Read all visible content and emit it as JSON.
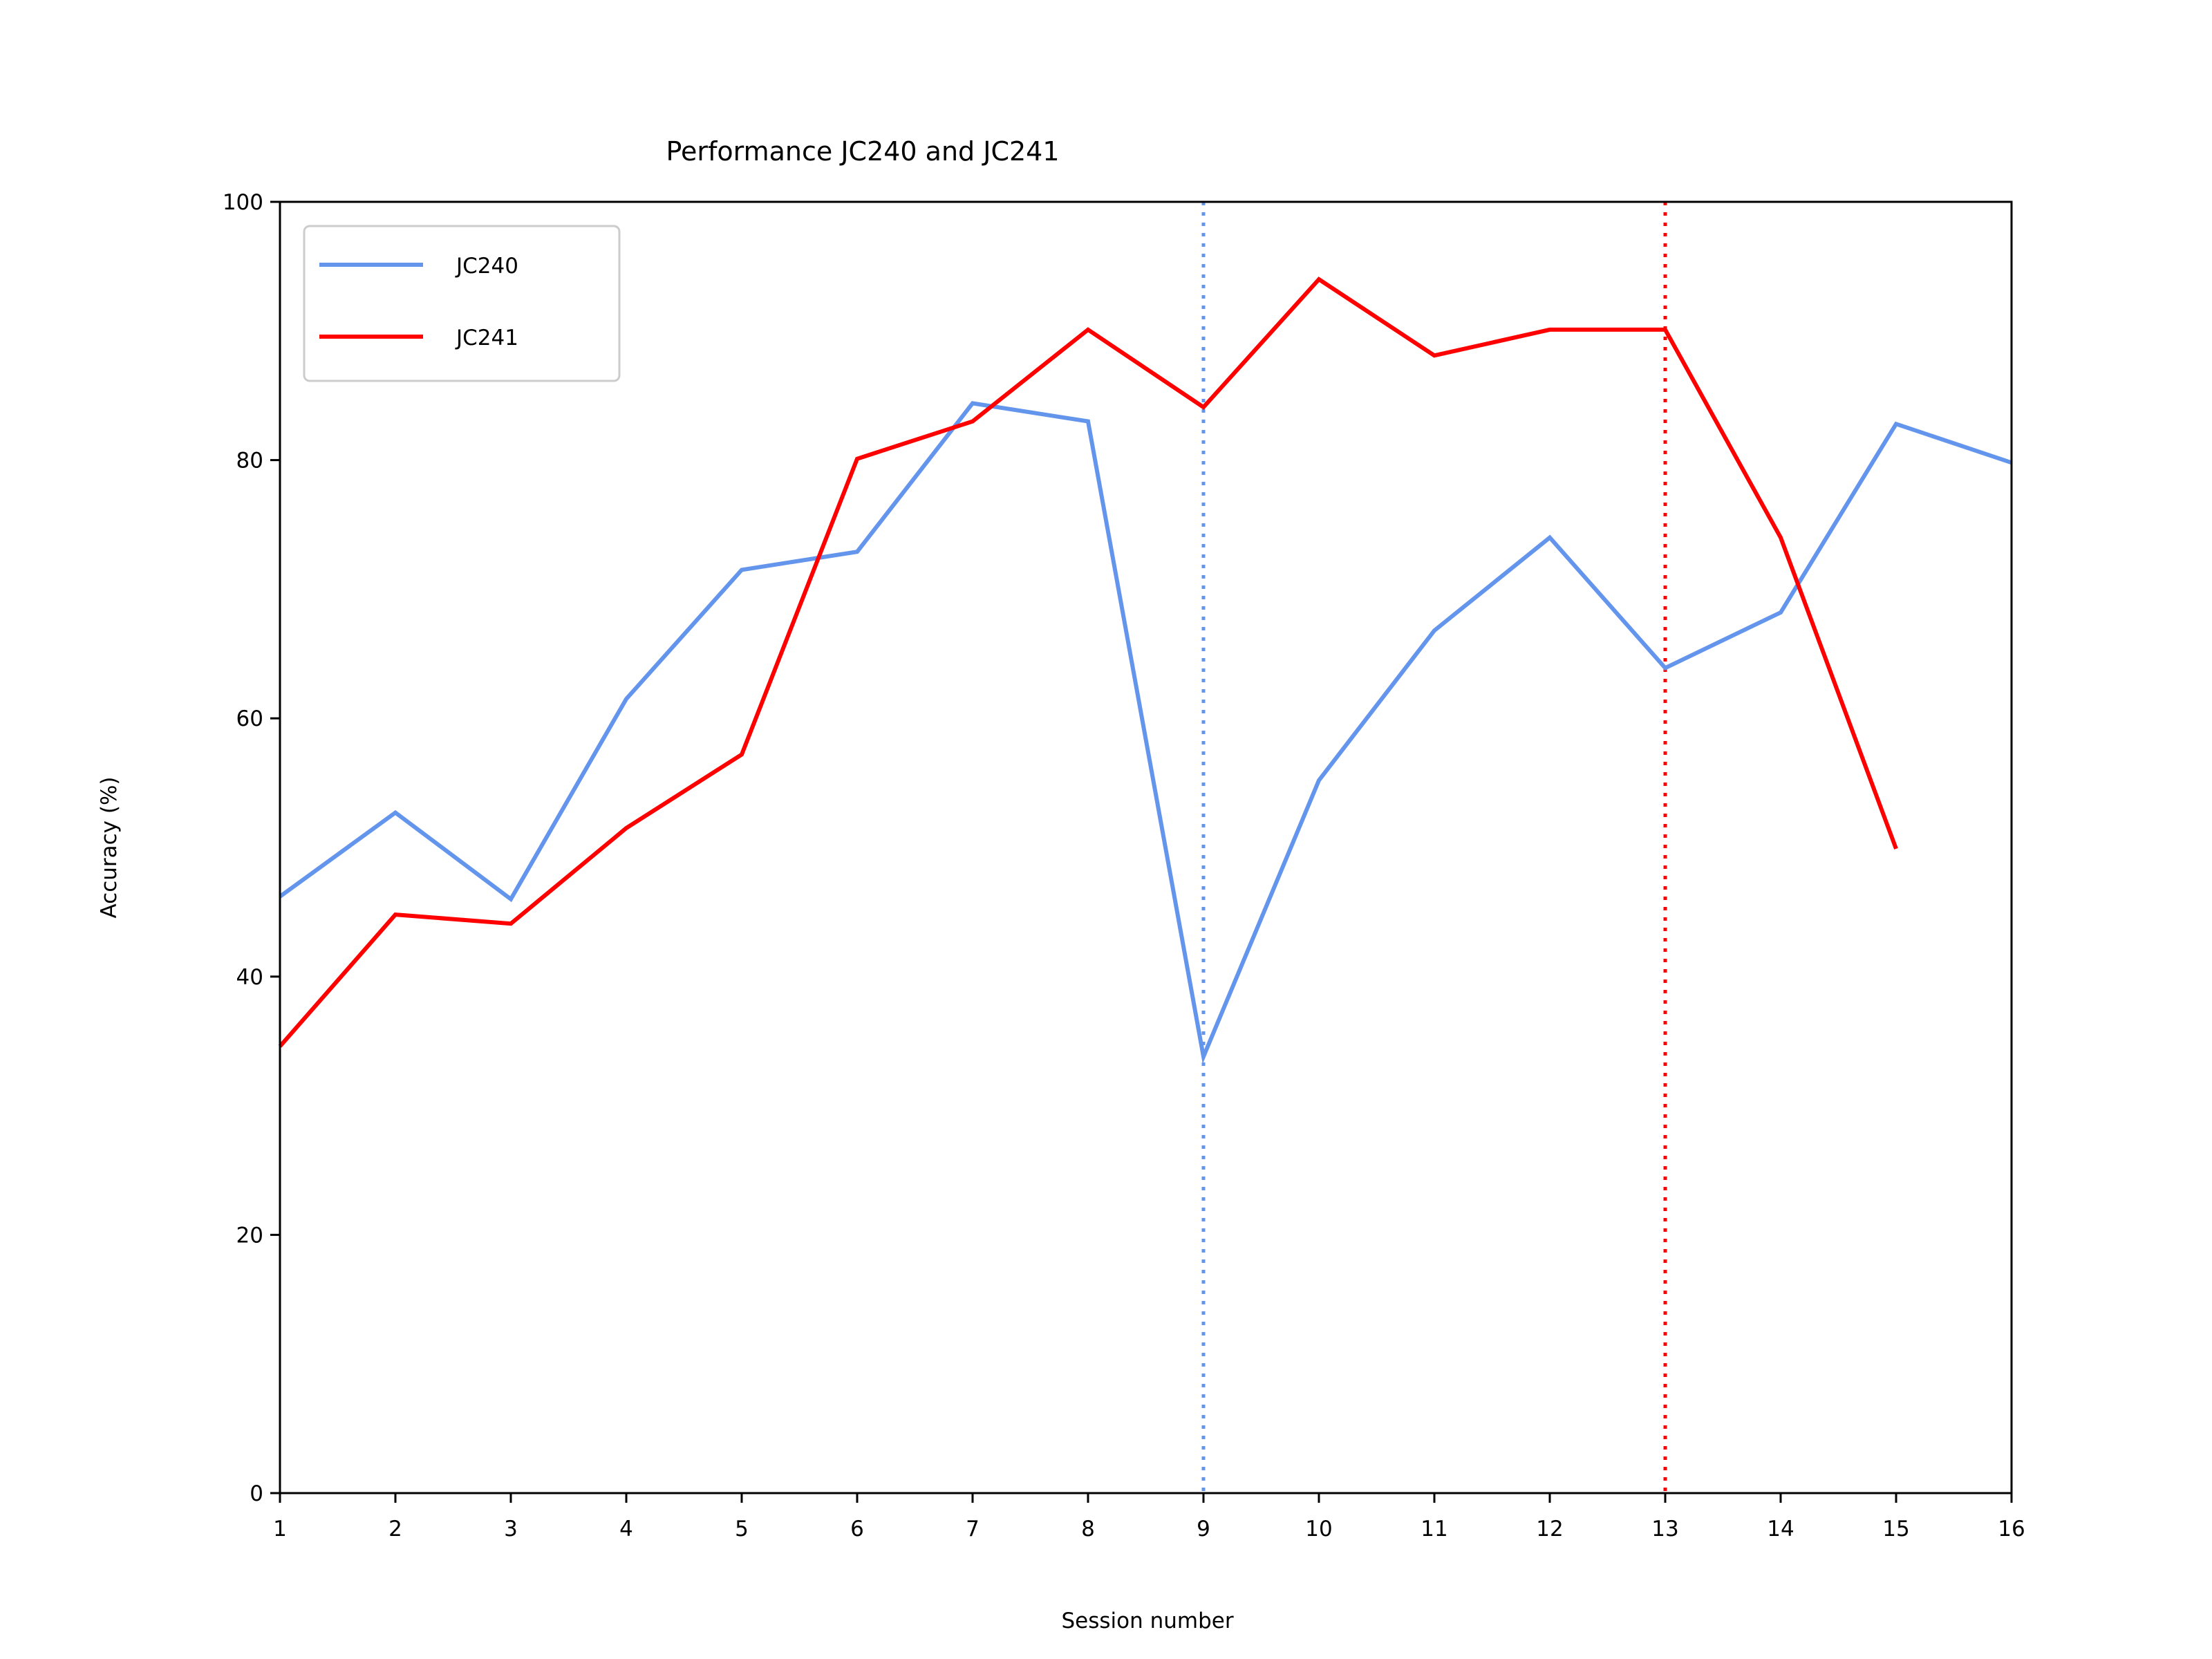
{
  "chart_data": {
    "type": "line",
    "title": "Performance JC240 and JC241",
    "xlabel": "Session number",
    "ylabel": "Accuracy (%)",
    "xlim": [
      1,
      16
    ],
    "ylim": [
      0,
      100
    ],
    "xticks": [
      "1",
      "2",
      "3",
      "4",
      "5",
      "6",
      "7",
      "8",
      "9",
      "10",
      "11",
      "12",
      "13",
      "14",
      "15",
      "16"
    ],
    "yticks": [
      "0",
      "20",
      "40",
      "60",
      "80",
      "100"
    ],
    "grid": false,
    "legend_position": "top-left",
    "series": [
      {
        "name": "JC240",
        "color": "#6495ED",
        "x": [
          1,
          2,
          3,
          4,
          5,
          6,
          7,
          8,
          9,
          10,
          11,
          12,
          13,
          14,
          15,
          16
        ],
        "y": [
          46.2,
          52.7,
          46.0,
          61.5,
          71.5,
          72.9,
          84.4,
          83.0,
          33.8,
          55.2,
          66.8,
          74.0,
          63.9,
          68.2,
          82.8,
          79.8
        ]
      },
      {
        "name": "JC241",
        "color": "#FF0000",
        "x": [
          1,
          2,
          3,
          4,
          5,
          6,
          7,
          8,
          9,
          10,
          11,
          12,
          13,
          14,
          15
        ],
        "y": [
          34.6,
          44.8,
          44.1,
          51.5,
          57.2,
          80.1,
          83.0,
          90.1,
          84.1,
          94.0,
          88.1,
          90.1,
          90.1,
          74.0,
          49.9
        ]
      }
    ],
    "reference_lines": [
      {
        "x": 9,
        "color": "#6495ED",
        "style": "dotted"
      },
      {
        "x": 13,
        "color": "#FF0000",
        "style": "dotted"
      }
    ]
  }
}
